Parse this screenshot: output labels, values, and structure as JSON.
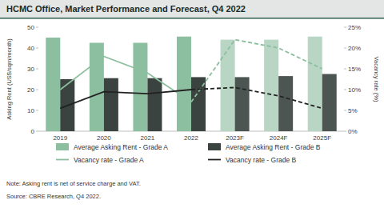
{
  "chart_data": {
    "type": "bar",
    "title": "HCMC Office, Market Performance and Forecast, Q4 2022",
    "y_label": "Asking Rent (US$/sqm/month)",
    "y2_label": "Vacancy rate (%)",
    "note": "Note: Asking rent is net of service charge and VAT.",
    "source": "Source: CBRE Research, Q4 2022.",
    "categories": [
      "2019",
      "2020",
      "2021",
      "2022",
      "2023F",
      "2024F",
      "2025F"
    ],
    "ylim": [
      0,
      50
    ],
    "yticks": [
      0,
      10,
      20,
      30,
      40,
      50
    ],
    "y2lim": [
      0,
      25
    ],
    "y2ticks": [
      {
        "value": 0,
        "label": "0%"
      },
      {
        "value": 5,
        "label": "5%"
      },
      {
        "value": 10,
        "label": "10%"
      },
      {
        "value": 15,
        "label": "15%"
      },
      {
        "value": 20,
        "label": "20%"
      },
      {
        "value": 25,
        "label": "25%"
      }
    ],
    "grid": false,
    "legend": "bottom",
    "series": [
      {
        "name": "Average Asking Rent - Grade A",
        "type": "bar",
        "color": "#8cbf9f",
        "colors": [
          "#8cbf9f",
          "#8cbf9f",
          "#8cbf9f",
          "#8cbf9f",
          "#b8d6c3",
          "#b8d6c3",
          "#b8d6c3"
        ],
        "values": [
          45,
          42.5,
          42.5,
          45.5,
          44,
          44,
          45.5
        ]
      },
      {
        "name": "Average Asking Rent - Grade B",
        "type": "bar",
        "color": "#3b4341",
        "colors": [
          "#3b4341",
          "#3b4341",
          "#3b4341",
          "#3b4341",
          "#4d5553",
          "#4d5553",
          "#4d5553"
        ],
        "values": [
          25,
          25.5,
          25.5,
          26,
          26,
          26.5,
          27.5
        ]
      },
      {
        "name": "Vacancy rate - Grade A",
        "type": "line",
        "axis": "y2",
        "color": "#8cbf9f",
        "line_style": "solid",
        "values": [
          10,
          18,
          14,
          7,
          22,
          20,
          15
        ]
      },
      {
        "name": "Vacancy rate - Grade B",
        "type": "line",
        "axis": "y2",
        "color": "#222222",
        "line_style": "solid",
        "values": [
          5.5,
          9.5,
          9,
          10,
          10.5,
          8.5,
          5.5
        ]
      }
    ]
  }
}
